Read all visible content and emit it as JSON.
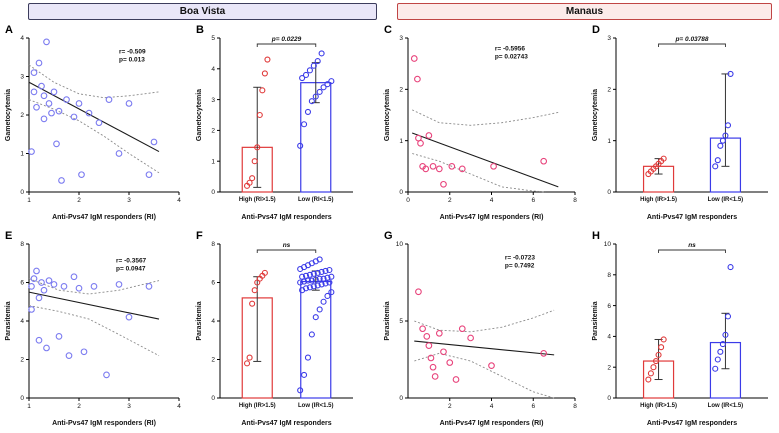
{
  "headers": {
    "left": {
      "label": "Boa Vista",
      "bg": "#e9e6f8",
      "border": "#3c3c5c",
      "text": "#111111"
    },
    "right": {
      "label": "Manaus",
      "bg": "#fcebea",
      "border": "#c04545",
      "text": "#111111"
    }
  },
  "chart_data": [
    {
      "letter": "A",
      "type": "scatter",
      "region": "Boa Vista",
      "xlabel": "Anti-Pvs47 IgM responders (RI)",
      "ylabel": "Gametocytemia",
      "xlim": [
        1,
        4
      ],
      "ylim": [
        0,
        4
      ],
      "xticks": [
        1,
        2,
        3,
        4
      ],
      "yticks": [
        0,
        1,
        2,
        3,
        4
      ],
      "color": "#7b7bf0",
      "points": [
        [
          1.05,
          1.05
        ],
        [
          1.1,
          2.6
        ],
        [
          1.1,
          3.1
        ],
        [
          1.15,
          2.2
        ],
        [
          1.2,
          3.35
        ],
        [
          1.25,
          2.75
        ],
        [
          1.3,
          1.9
        ],
        [
          1.3,
          2.5
        ],
        [
          1.35,
          3.9
        ],
        [
          1.4,
          2.3
        ],
        [
          1.45,
          2.05
        ],
        [
          1.5,
          2.6
        ],
        [
          1.55,
          1.25
        ],
        [
          1.6,
          2.1
        ],
        [
          1.65,
          0.3
        ],
        [
          1.75,
          2.4
        ],
        [
          1.9,
          1.95
        ],
        [
          2.0,
          2.3
        ],
        [
          2.05,
          0.45
        ],
        [
          2.2,
          2.05
        ],
        [
          2.4,
          1.8
        ],
        [
          2.6,
          2.4
        ],
        [
          2.8,
          1.0
        ],
        [
          3.0,
          2.3
        ],
        [
          3.4,
          0.45
        ],
        [
          3.5,
          1.3
        ]
      ],
      "fit": {
        "x1": 1.0,
        "y1": 2.85,
        "x2": 3.6,
        "y2": 1.05
      },
      "ci_upper": [
        [
          1.0,
          3.3
        ],
        [
          1.5,
          2.85
        ],
        [
          2.0,
          2.55
        ],
        [
          2.5,
          2.45
        ],
        [
          3.0,
          2.5
        ],
        [
          3.6,
          2.6
        ]
      ],
      "ci_lower": [
        [
          1.0,
          2.4
        ],
        [
          1.5,
          2.15
        ],
        [
          2.0,
          1.85
        ],
        [
          2.5,
          1.45
        ],
        [
          3.0,
          1.0
        ],
        [
          3.6,
          0.5
        ]
      ],
      "stats": [
        "r= -0.509",
        "p= 0.013"
      ],
      "stats_x": 0.6,
      "stats_y": 0.1
    },
    {
      "letter": "B",
      "type": "bar",
      "region": "Boa Vista",
      "xlabel": "Anti-Pvs47 IgM responders",
      "ylabel": "Gametocytemia",
      "ylim": [
        0,
        5
      ],
      "yticks": [
        0,
        1,
        2,
        3,
        4,
        5
      ],
      "p_label": "p= 0.0229",
      "groups": [
        {
          "label": "High (RI>1.5)",
          "color": "#e03a3a",
          "bar": 1.45,
          "whisker": [
            0.15,
            3.4
          ],
          "points": [
            0.2,
            0.3,
            0.45,
            1.0,
            1.45,
            2.5,
            3.3,
            3.85,
            4.3
          ]
        },
        {
          "label": "Low (RI<1.5)",
          "color": "#3b3be8",
          "bar": 3.55,
          "whisker": [
            2.9,
            4.2
          ],
          "points": [
            1.5,
            2.2,
            2.6,
            2.95,
            3.1,
            3.25,
            3.4,
            3.5,
            3.6,
            3.7,
            3.8,
            3.95,
            4.1,
            4.25,
            4.5
          ]
        }
      ]
    },
    {
      "letter": "C",
      "type": "scatter",
      "region": "Manaus",
      "xlabel": "Anti-Pvs47 IgM responders (RI)",
      "ylabel": "Gametocytemia",
      "xlim": [
        0,
        8
      ],
      "ylim": [
        0,
        3
      ],
      "xticks": [
        0,
        2,
        4,
        6,
        8
      ],
      "yticks": [
        0,
        1,
        2,
        3
      ],
      "color": "#e8447c",
      "points": [
        [
          0.3,
          2.6
        ],
        [
          0.45,
          2.2
        ],
        [
          0.5,
          1.05
        ],
        [
          0.6,
          0.95
        ],
        [
          0.7,
          0.5
        ],
        [
          0.85,
          0.45
        ],
        [
          1.0,
          1.1
        ],
        [
          1.2,
          0.5
        ],
        [
          1.5,
          0.45
        ],
        [
          1.7,
          0.15
        ],
        [
          2.1,
          0.5
        ],
        [
          2.6,
          0.45
        ],
        [
          4.1,
          0.5
        ],
        [
          6.5,
          0.6
        ]
      ],
      "fit": {
        "x1": 0.2,
        "y1": 1.15,
        "x2": 7.2,
        "y2": 0.1
      },
      "ci_upper": [
        [
          0.2,
          1.6
        ],
        [
          1.5,
          1.35
        ],
        [
          3.0,
          1.3
        ],
        [
          4.5,
          1.35
        ],
        [
          6.0,
          1.45
        ],
        [
          7.2,
          1.55
        ]
      ],
      "ci_lower": [
        [
          0.2,
          0.75
        ],
        [
          1.5,
          0.6
        ],
        [
          3.0,
          0.35
        ],
        [
          4.5,
          0.1
        ],
        [
          6.0,
          0.02
        ],
        [
          6.6,
          0.0
        ]
      ],
      "stats": [
        "r= -0.5956",
        "p= 0.02743"
      ],
      "stats_x": 0.52,
      "stats_y": 0.08
    },
    {
      "letter": "D",
      "type": "bar",
      "region": "Manaus",
      "xlabel": "Anti-Pvs47 IgM responders",
      "ylabel": "Gametocytemia",
      "ylim": [
        0,
        3
      ],
      "yticks": [
        0,
        1,
        2,
        3
      ],
      "p_label": "p= 0.03788",
      "groups": [
        {
          "label": "High (IR>1.5)",
          "color": "#e03a3a",
          "bar": 0.5,
          "whisker": [
            0.35,
            0.65
          ],
          "points": [
            0.35,
            0.4,
            0.45,
            0.5,
            0.55,
            0.6,
            0.65
          ]
        },
        {
          "label": "Low (IR<1.5)",
          "color": "#3b3be8",
          "bar": 1.05,
          "whisker": [
            0.5,
            2.3
          ],
          "points": [
            0.5,
            0.62,
            0.9,
            1.0,
            1.1,
            1.3,
            2.3
          ]
        }
      ]
    },
    {
      "letter": "E",
      "type": "scatter",
      "region": "Boa Vista",
      "xlabel": "Anti-Pvs47 IgM responders (RI)",
      "ylabel": "Parasitemia",
      "xlim": [
        1,
        4
      ],
      "ylim": [
        0,
        8
      ],
      "xticks": [
        1,
        2,
        3,
        4
      ],
      "yticks": [
        0,
        2,
        4,
        6,
        8
      ],
      "color": "#7b7bf0",
      "points": [
        [
          1.05,
          5.8
        ],
        [
          1.05,
          4.6
        ],
        [
          1.1,
          6.2
        ],
        [
          1.15,
          6.6
        ],
        [
          1.2,
          5.2
        ],
        [
          1.2,
          3.0
        ],
        [
          1.25,
          6.0
        ],
        [
          1.3,
          5.6
        ],
        [
          1.35,
          2.6
        ],
        [
          1.4,
          6.1
        ],
        [
          1.5,
          5.9
        ],
        [
          1.6,
          3.2
        ],
        [
          1.7,
          5.8
        ],
        [
          1.8,
          2.2
        ],
        [
          1.9,
          6.3
        ],
        [
          2.0,
          5.7
        ],
        [
          2.1,
          2.4
        ],
        [
          2.3,
          5.8
        ],
        [
          2.55,
          1.2
        ],
        [
          2.8,
          5.9
        ],
        [
          3.0,
          4.2
        ],
        [
          3.4,
          5.8
        ]
      ],
      "fit": {
        "x1": 1.0,
        "y1": 5.5,
        "x2": 3.6,
        "y2": 4.1
      },
      "ci_upper": [
        [
          1.0,
          6.2
        ],
        [
          1.6,
          5.6
        ],
        [
          2.2,
          5.4
        ],
        [
          2.8,
          5.6
        ],
        [
          3.6,
          6.1
        ]
      ],
      "ci_lower": [
        [
          1.0,
          4.8
        ],
        [
          1.6,
          4.5
        ],
        [
          2.2,
          4.1
        ],
        [
          2.8,
          3.3
        ],
        [
          3.6,
          2.2
        ]
      ],
      "stats": [
        "r= -0.3567",
        "p= 0.0947"
      ],
      "stats_x": 0.58,
      "stats_y": 0.12
    },
    {
      "letter": "F",
      "type": "bar",
      "region": "Boa Vista",
      "xlabel": "Anti-Pvs47 IgM responders",
      "ylabel": "Parasitemia",
      "ylim": [
        0,
        8
      ],
      "yticks": [
        0,
        2,
        4,
        6,
        8
      ],
      "p_label": "ns",
      "groups": [
        {
          "label": "High (IR>1.5)",
          "color": "#e03a3a",
          "bar": 5.2,
          "whisker": [
            1.9,
            6.3
          ],
          "points": [
            1.8,
            2.1,
            4.9,
            5.6,
            6.0,
            6.2,
            6.35,
            6.5
          ]
        },
        {
          "label": "Low (IR<1.5)",
          "color": "#3b3be8",
          "bar": 6.05,
          "whisker": [
            5.6,
            6.6
          ],
          "points": [
            0.4,
            1.2,
            2.1,
            3.3,
            4.2,
            4.6,
            5.0,
            5.3,
            5.5,
            5.6,
            5.7,
            5.75,
            5.8,
            5.85,
            5.9,
            5.95,
            6.0,
            6.0,
            6.05,
            6.1,
            6.1,
            6.15,
            6.2,
            6.2,
            6.25,
            6.3,
            6.3,
            6.35,
            6.4,
            6.45,
            6.5,
            6.55,
            6.6,
            6.65,
            6.7,
            6.8,
            6.9,
            7.0,
            7.1,
            7.2
          ]
        }
      ]
    },
    {
      "letter": "G",
      "type": "scatter",
      "region": "Manaus",
      "xlabel": "Anti-Pvs47 IgM responders (RI)",
      "ylabel": "Parasitemia",
      "xlim": [
        0,
        8
      ],
      "ylim": [
        0,
        10
      ],
      "xticks": [
        2,
        4,
        6,
        8
      ],
      "yticks": [
        0,
        5,
        10
      ],
      "color": "#e8447c",
      "points": [
        [
          0.5,
          6.9
        ],
        [
          0.7,
          4.5
        ],
        [
          0.9,
          4.0
        ],
        [
          1.0,
          3.4
        ],
        [
          1.1,
          2.6
        ],
        [
          1.2,
          2.0
        ],
        [
          1.3,
          1.4
        ],
        [
          1.5,
          4.2
        ],
        [
          1.7,
          3.0
        ],
        [
          2.0,
          2.3
        ],
        [
          2.3,
          1.2
        ],
        [
          2.6,
          4.5
        ],
        [
          3.0,
          3.9
        ],
        [
          4.0,
          2.1
        ],
        [
          6.5,
          2.9
        ]
      ],
      "fit": {
        "x1": 0.3,
        "y1": 3.7,
        "x2": 7.0,
        "y2": 2.8
      },
      "ci_upper": [
        [
          0.3,
          5.0
        ],
        [
          1.5,
          4.4
        ],
        [
          3.0,
          4.3
        ],
        [
          4.5,
          4.6
        ],
        [
          6.0,
          5.2
        ],
        [
          7.0,
          5.7
        ]
      ],
      "ci_lower": [
        [
          0.3,
          2.4
        ],
        [
          1.5,
          2.9
        ],
        [
          3.0,
          2.4
        ],
        [
          4.5,
          1.4
        ],
        [
          6.0,
          0.4
        ],
        [
          7.0,
          0.0
        ]
      ],
      "stats": [
        "r= -0.0723",
        "p= 0.7492"
      ],
      "stats_x": 0.58,
      "stats_y": 0.1
    },
    {
      "letter": "H",
      "type": "bar",
      "region": "Manaus",
      "xlabel": "Anti-Pvs47 IgM responders",
      "ylabel": "Parasitemia",
      "ylim": [
        0,
        10
      ],
      "yticks": [
        0,
        2,
        4,
        6,
        8,
        10
      ],
      "p_label": "ns",
      "groups": [
        {
          "label": "High (IR>1.5)",
          "color": "#e03a3a",
          "bar": 2.4,
          "whisker": [
            1.2,
            3.8
          ],
          "points": [
            1.2,
            1.6,
            2.0,
            2.4,
            2.8,
            3.3,
            3.8
          ]
        },
        {
          "label": "Low (IR<1.5)",
          "color": "#3b3be8",
          "bar": 3.6,
          "whisker": [
            1.9,
            5.5
          ],
          "points": [
            1.9,
            2.5,
            3.0,
            3.5,
            4.1,
            5.3,
            8.5
          ]
        }
      ]
    }
  ]
}
